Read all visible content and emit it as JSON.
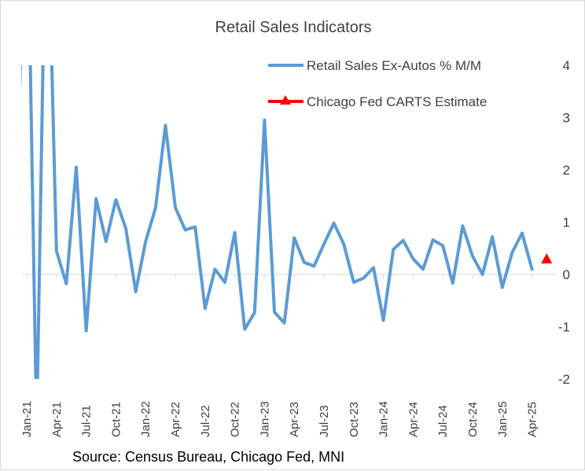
{
  "chart_data": {
    "type": "line",
    "title": "Retail Sales Indicators",
    "source": "Source: Census Bureau, Chicago Fed, MNI",
    "xlabel": "",
    "ylabel": "",
    "y_axis_side": "right",
    "ylim": [
      -2,
      4
    ],
    "yticks": [
      -2,
      -1,
      0,
      1,
      2,
      3,
      4
    ],
    "x_tick_labels": [
      "Jan-21",
      "Apr-21",
      "Jul-21",
      "Oct-21",
      "Jan-22",
      "Apr-22",
      "Jul-22",
      "Oct-22",
      "Jan-23",
      "Apr-23",
      "Jul-23",
      "Oct-23",
      "Jan-24",
      "Apr-24",
      "Jul-24",
      "Oct-24",
      "Jan-25",
      "Apr-25"
    ],
    "legend_position": "top-right",
    "grid": false,
    "series": [
      {
        "name": "Retail Sales Ex-Autos % M/M",
        "color": "#5b9bd5",
        "marker": "none",
        "x": [
          "Dec-20",
          "Jan-21",
          "Feb-21",
          "Mar-21",
          "Apr-21",
          "May-21",
          "Jun-21",
          "Jul-21",
          "Aug-21",
          "Sep-21",
          "Oct-21",
          "Nov-21",
          "Dec-21",
          "Jan-22",
          "Feb-22",
          "Mar-22",
          "Apr-22",
          "May-22",
          "Jun-22",
          "Jul-22",
          "Aug-22",
          "Sep-22",
          "Oct-22",
          "Nov-22",
          "Dec-22",
          "Jan-23",
          "Feb-23",
          "Mar-23",
          "Apr-23",
          "May-23",
          "Jun-23",
          "Jul-23",
          "Aug-23",
          "Sep-23",
          "Oct-23",
          "Nov-23",
          "Dec-23",
          "Jan-24",
          "Feb-24",
          "Mar-24",
          "Apr-24",
          "May-24",
          "Jun-24",
          "Jul-24",
          "Aug-24",
          "Sep-24",
          "Oct-24",
          "Nov-24",
          "Dec-24",
          "Jan-25",
          "Feb-25",
          "Mar-25",
          "Apr-25"
        ],
        "values": [
          1.7,
          8.0,
          -3.0,
          8.0,
          0.45,
          -0.18,
          2.05,
          -1.08,
          1.45,
          0.63,
          1.43,
          0.88,
          -0.33,
          0.63,
          1.27,
          2.85,
          1.28,
          0.85,
          0.91,
          -0.65,
          0.1,
          -0.15,
          0.8,
          -1.05,
          -0.73,
          2.95,
          -0.72,
          -0.93,
          0.7,
          0.23,
          0.16,
          0.58,
          0.98,
          0.58,
          -0.15,
          -0.07,
          0.13,
          -0.88,
          0.48,
          0.65,
          0.3,
          0.1,
          0.66,
          0.55,
          -0.17,
          0.93,
          0.35,
          0.0,
          0.72,
          -0.25,
          0.42,
          0.79,
          0.1
        ]
      },
      {
        "name": "Chicago Fed CARTS Estimate",
        "color": "#ff0000",
        "marker": "triangle",
        "x": [
          "May-25"
        ],
        "values": [
          0.3
        ]
      }
    ]
  }
}
